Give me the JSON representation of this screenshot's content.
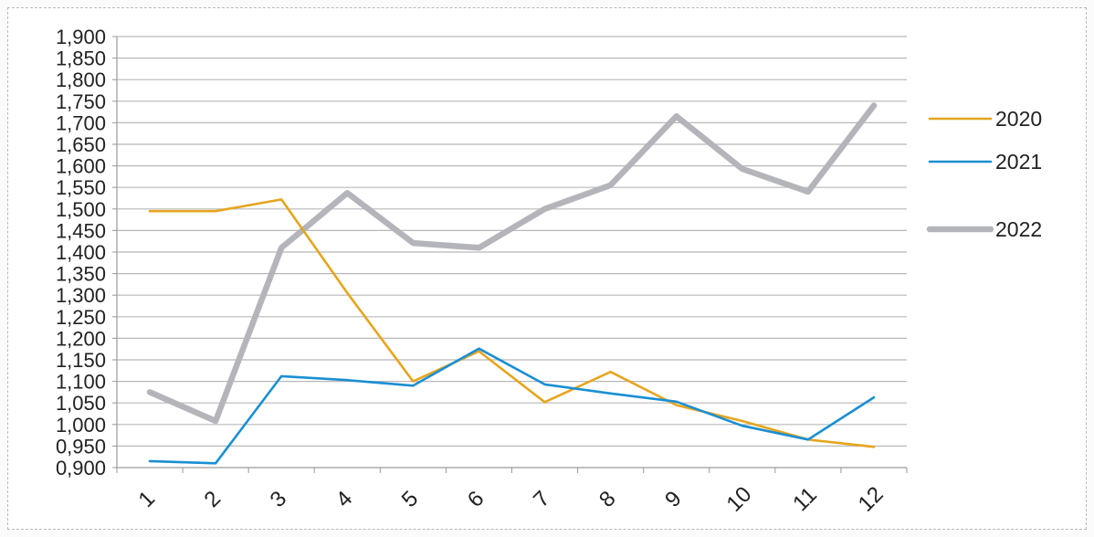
{
  "chart_data": {
    "type": "line",
    "title": "",
    "xlabel": "",
    "ylabel": "",
    "categories": [
      "1",
      "2",
      "3",
      "4",
      "5",
      "6",
      "7",
      "8",
      "9",
      "10",
      "11",
      "12"
    ],
    "y_tick_labels": [
      "0,900",
      "0,950",
      "1,000",
      "1,050",
      "1,100",
      "1,150",
      "1,200",
      "1,250",
      "1,300",
      "1,350",
      "1,400",
      "1,450",
      "1,500",
      "1,550",
      "1,600",
      "1,650",
      "1,700",
      "1,750",
      "1,800",
      "1,850",
      "1,900"
    ],
    "ylim": [
      0.9,
      1.9
    ],
    "grid": true,
    "legend_position": "right",
    "series": [
      {
        "name": "2020",
        "color": "#e6a51e",
        "values": [
          1.495,
          1.495,
          1.522,
          1.305,
          1.1,
          1.17,
          1.052,
          1.122,
          1.045,
          1.008,
          0.965,
          0.948
        ]
      },
      {
        "name": "2021",
        "color": "#1a8fd3",
        "values": [
          0.915,
          0.91,
          1.112,
          1.103,
          1.09,
          1.176,
          1.093,
          1.072,
          1.053,
          0.997,
          0.965,
          1.063
        ]
      },
      {
        "name": "2022",
        "color": "#b4b4bb",
        "values": [
          1.075,
          1.008,
          1.41,
          1.537,
          1.421,
          1.41,
          1.5,
          1.555,
          1.715,
          1.593,
          1.54,
          1.74
        ]
      }
    ]
  }
}
